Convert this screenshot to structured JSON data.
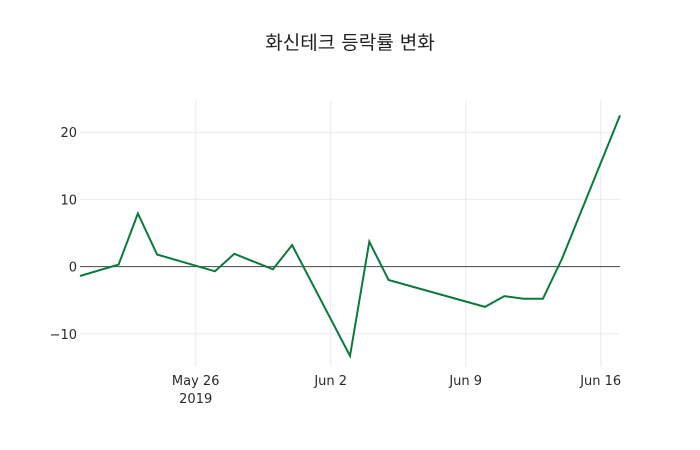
{
  "chart_data": {
    "type": "line",
    "title": "화신테크 등락률 변화",
    "xlabel": "",
    "ylabel": "",
    "x": [
      "2019-05-20",
      "2019-05-22",
      "2019-05-23",
      "2019-05-24",
      "2019-05-27",
      "2019-05-28",
      "2019-05-30",
      "2019-05-31",
      "2019-06-03",
      "2019-06-04",
      "2019-06-05",
      "2019-06-10",
      "2019-06-11",
      "2019-06-12",
      "2019-06-13",
      "2019-06-14",
      "2019-06-17"
    ],
    "series": [
      {
        "name": "등락률",
        "color": "#0b7a3e",
        "values": [
          -1.4,
          0.3,
          7.9,
          1.8,
          -0.7,
          1.9,
          -0.4,
          3.2,
          -13.3,
          3.7,
          -2.0,
          -6.0,
          -4.4,
          -4.8,
          -4.8,
          1.2,
          22.5
        ]
      }
    ],
    "x_ticks": [
      {
        "date": "2019-05-26",
        "label": "May 26",
        "sublabel": "2019"
      },
      {
        "date": "2019-06-02",
        "label": "Jun 2",
        "sublabel": ""
      },
      {
        "date": "2019-06-09",
        "label": "Jun 9",
        "sublabel": ""
      },
      {
        "date": "2019-06-16",
        "label": "Jun 16",
        "sublabel": ""
      }
    ],
    "y_ticks": [
      20,
      10,
      0,
      -10
    ],
    "y_tick_labels": [
      "20",
      "10",
      "0",
      "−10"
    ],
    "ylim": [
      -14.8,
      24.8
    ],
    "grid": true,
    "zero_line": true,
    "legend": "none"
  }
}
